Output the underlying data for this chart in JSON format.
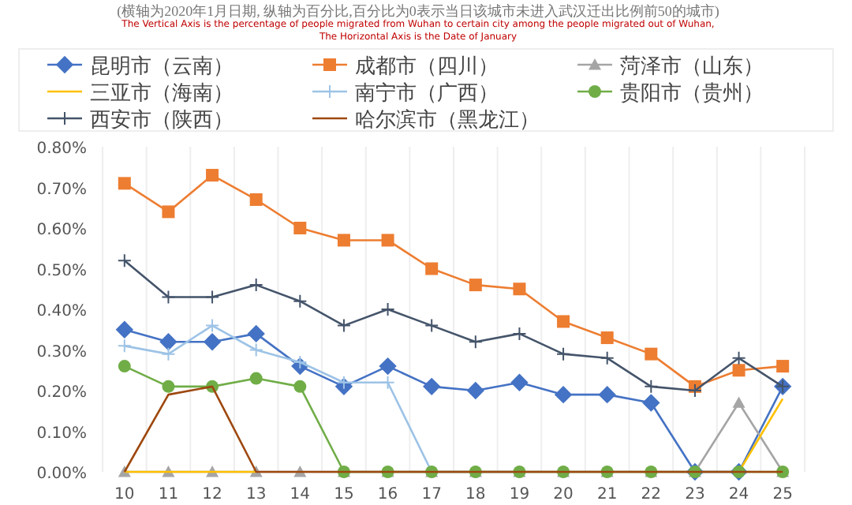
{
  "chart_data": {
    "type": "line",
    "subtitle": "(横轴为2020年1月日期, 纵轴为百分比,百分比为0表示当日该城市未进入武汉迁出比例前50的城市)",
    "annotations": [
      "The Vertical Axis is the percentage of people migrated from Wuhan to certain city  among the people migrated out of Wuhan,",
      "The Horizontal Axis is the Date of January"
    ],
    "categories": [
      "10",
      "11",
      "12",
      "13",
      "14",
      "15",
      "16",
      "17",
      "18",
      "19",
      "20",
      "21",
      "22",
      "23",
      "24",
      "25"
    ],
    "ylim": [
      0,
      0.8
    ],
    "yticks": [
      {
        "value": 0,
        "label": "0.00%"
      },
      {
        "value": 0.1,
        "label": "0.10%"
      },
      {
        "value": 0.2,
        "label": "0.20%"
      },
      {
        "value": 0.3,
        "label": "0.30%"
      },
      {
        "value": 0.4,
        "label": "0.40%"
      },
      {
        "value": 0.5,
        "label": "0.50%"
      },
      {
        "value": 0.6,
        "label": "0.60%"
      },
      {
        "value": 0.7,
        "label": "0.70%"
      },
      {
        "value": 0.8,
        "label": "0.80%"
      }
    ],
    "grid": "x",
    "legend": "top",
    "series": [
      {
        "name": "昆明市（云南）",
        "color": "#4472c4",
        "marker": "diamond",
        "values": [
          0.35,
          0.32,
          0.32,
          0.34,
          0.26,
          0.21,
          0.26,
          0.21,
          0.2,
          0.22,
          0.19,
          0.19,
          0.17,
          0,
          0,
          0.21
        ]
      },
      {
        "name": "成都市（四川）",
        "color": "#ed7d31",
        "marker": "square",
        "values": [
          0.71,
          0.64,
          0.73,
          0.67,
          0.6,
          0.57,
          0.57,
          0.5,
          0.46,
          0.45,
          0.37,
          0.33,
          0.29,
          0.21,
          0.25,
          0.26
        ]
      },
      {
        "name": "菏泽市（山东）",
        "color": "#a5a5a5",
        "marker": "triangle",
        "values": [
          0,
          0,
          0,
          0,
          0,
          0,
          0,
          0,
          0,
          0,
          0,
          0,
          0,
          0,
          0.17,
          0
        ]
      },
      {
        "name": "三亚市（海南）",
        "color": "#ffc000",
        "marker": "none",
        "values": [
          0,
          0,
          0,
          0,
          null,
          null,
          null,
          null,
          null,
          null,
          null,
          null,
          null,
          null,
          0,
          0.18
        ]
      },
      {
        "name": "南宁市（广西）",
        "color": "#9dc3e6",
        "marker": "cross",
        "values": [
          0.31,
          0.29,
          0.36,
          0.3,
          0.27,
          0.22,
          0.22,
          0,
          0,
          0,
          null,
          null,
          null,
          null,
          null,
          null
        ]
      },
      {
        "name": "贵阳市（贵州）",
        "color": "#70ad47",
        "marker": "circle",
        "values": [
          0.26,
          0.21,
          0.21,
          0.23,
          0.21,
          0,
          0,
          0,
          0,
          0,
          0,
          0,
          0,
          0,
          0,
          0
        ]
      },
      {
        "name": "西安市（陕西）",
        "color": "#44546a",
        "marker": "cross",
        "values": [
          0.52,
          0.43,
          0.43,
          0.46,
          0.42,
          0.36,
          0.4,
          0.36,
          0.32,
          0.34,
          0.29,
          0.28,
          0.21,
          0.2,
          0.28,
          0.21
        ]
      },
      {
        "name": "哈尔滨市（黑龙江）",
        "color": "#9e480e",
        "marker": "none",
        "values": [
          0,
          0.19,
          0.21,
          0,
          0,
          0,
          0,
          0,
          0,
          0,
          0,
          0,
          0,
          0,
          0,
          0
        ]
      }
    ]
  }
}
